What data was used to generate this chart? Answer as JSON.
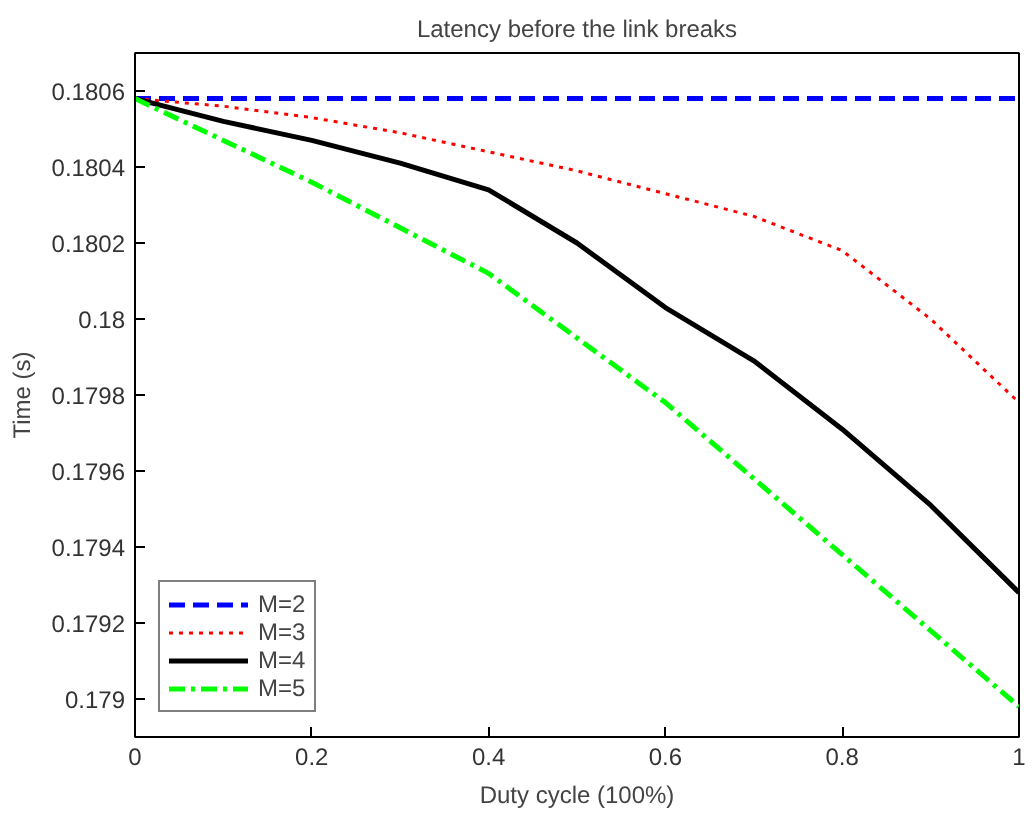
{
  "chart_data": {
    "type": "line",
    "title": "Latency before the link breaks",
    "xlabel": "Duty cycle (100%)",
    "ylabel": "Time (s)",
    "x": [
      0,
      0.1,
      0.2,
      0.3,
      0.4,
      0.5,
      0.6,
      0.7,
      0.8,
      0.9,
      1
    ],
    "series": [
      {
        "name": "M=2",
        "color": "#0000ff",
        "line_style": "dashed",
        "values": [
          0.18058,
          0.18058,
          0.18058,
          0.18058,
          0.18058,
          0.18058,
          0.18058,
          0.18058,
          0.18058,
          0.18058,
          0.18058
        ]
      },
      {
        "name": "M=3",
        "color": "#ff0000",
        "line_style": "dotted",
        "values": [
          0.18058,
          0.18056,
          0.18053,
          0.18049,
          0.18044,
          0.18039,
          0.18033,
          0.18027,
          0.18018,
          0.18,
          0.17978
        ]
      },
      {
        "name": "M=4",
        "color": "#000000",
        "line_style": "solid",
        "values": [
          0.18058,
          0.18052,
          0.18047,
          0.18041,
          0.18034,
          0.1802,
          0.18003,
          0.17989,
          0.17971,
          0.17951,
          0.17928
        ]
      },
      {
        "name": "M=5",
        "color": "#00ff00",
        "line_style": "dashdot",
        "values": [
          0.18058,
          0.18047,
          0.18036,
          0.18024,
          0.18012,
          0.17995,
          0.17978,
          0.17958,
          0.17938,
          0.17918,
          0.17898
        ]
      }
    ],
    "xlim": [
      0,
      1
    ],
    "xticks": [
      0,
      0.2,
      0.4,
      0.6,
      0.8,
      1
    ],
    "ylim": [
      0.1789,
      0.1807
    ],
    "yticks": [
      0.179,
      0.1792,
      0.1794,
      0.1796,
      0.1798,
      0.18,
      0.1802,
      0.1804,
      0.1806
    ],
    "legend": "bottom left",
    "grid": false,
    "marker": "none"
  }
}
